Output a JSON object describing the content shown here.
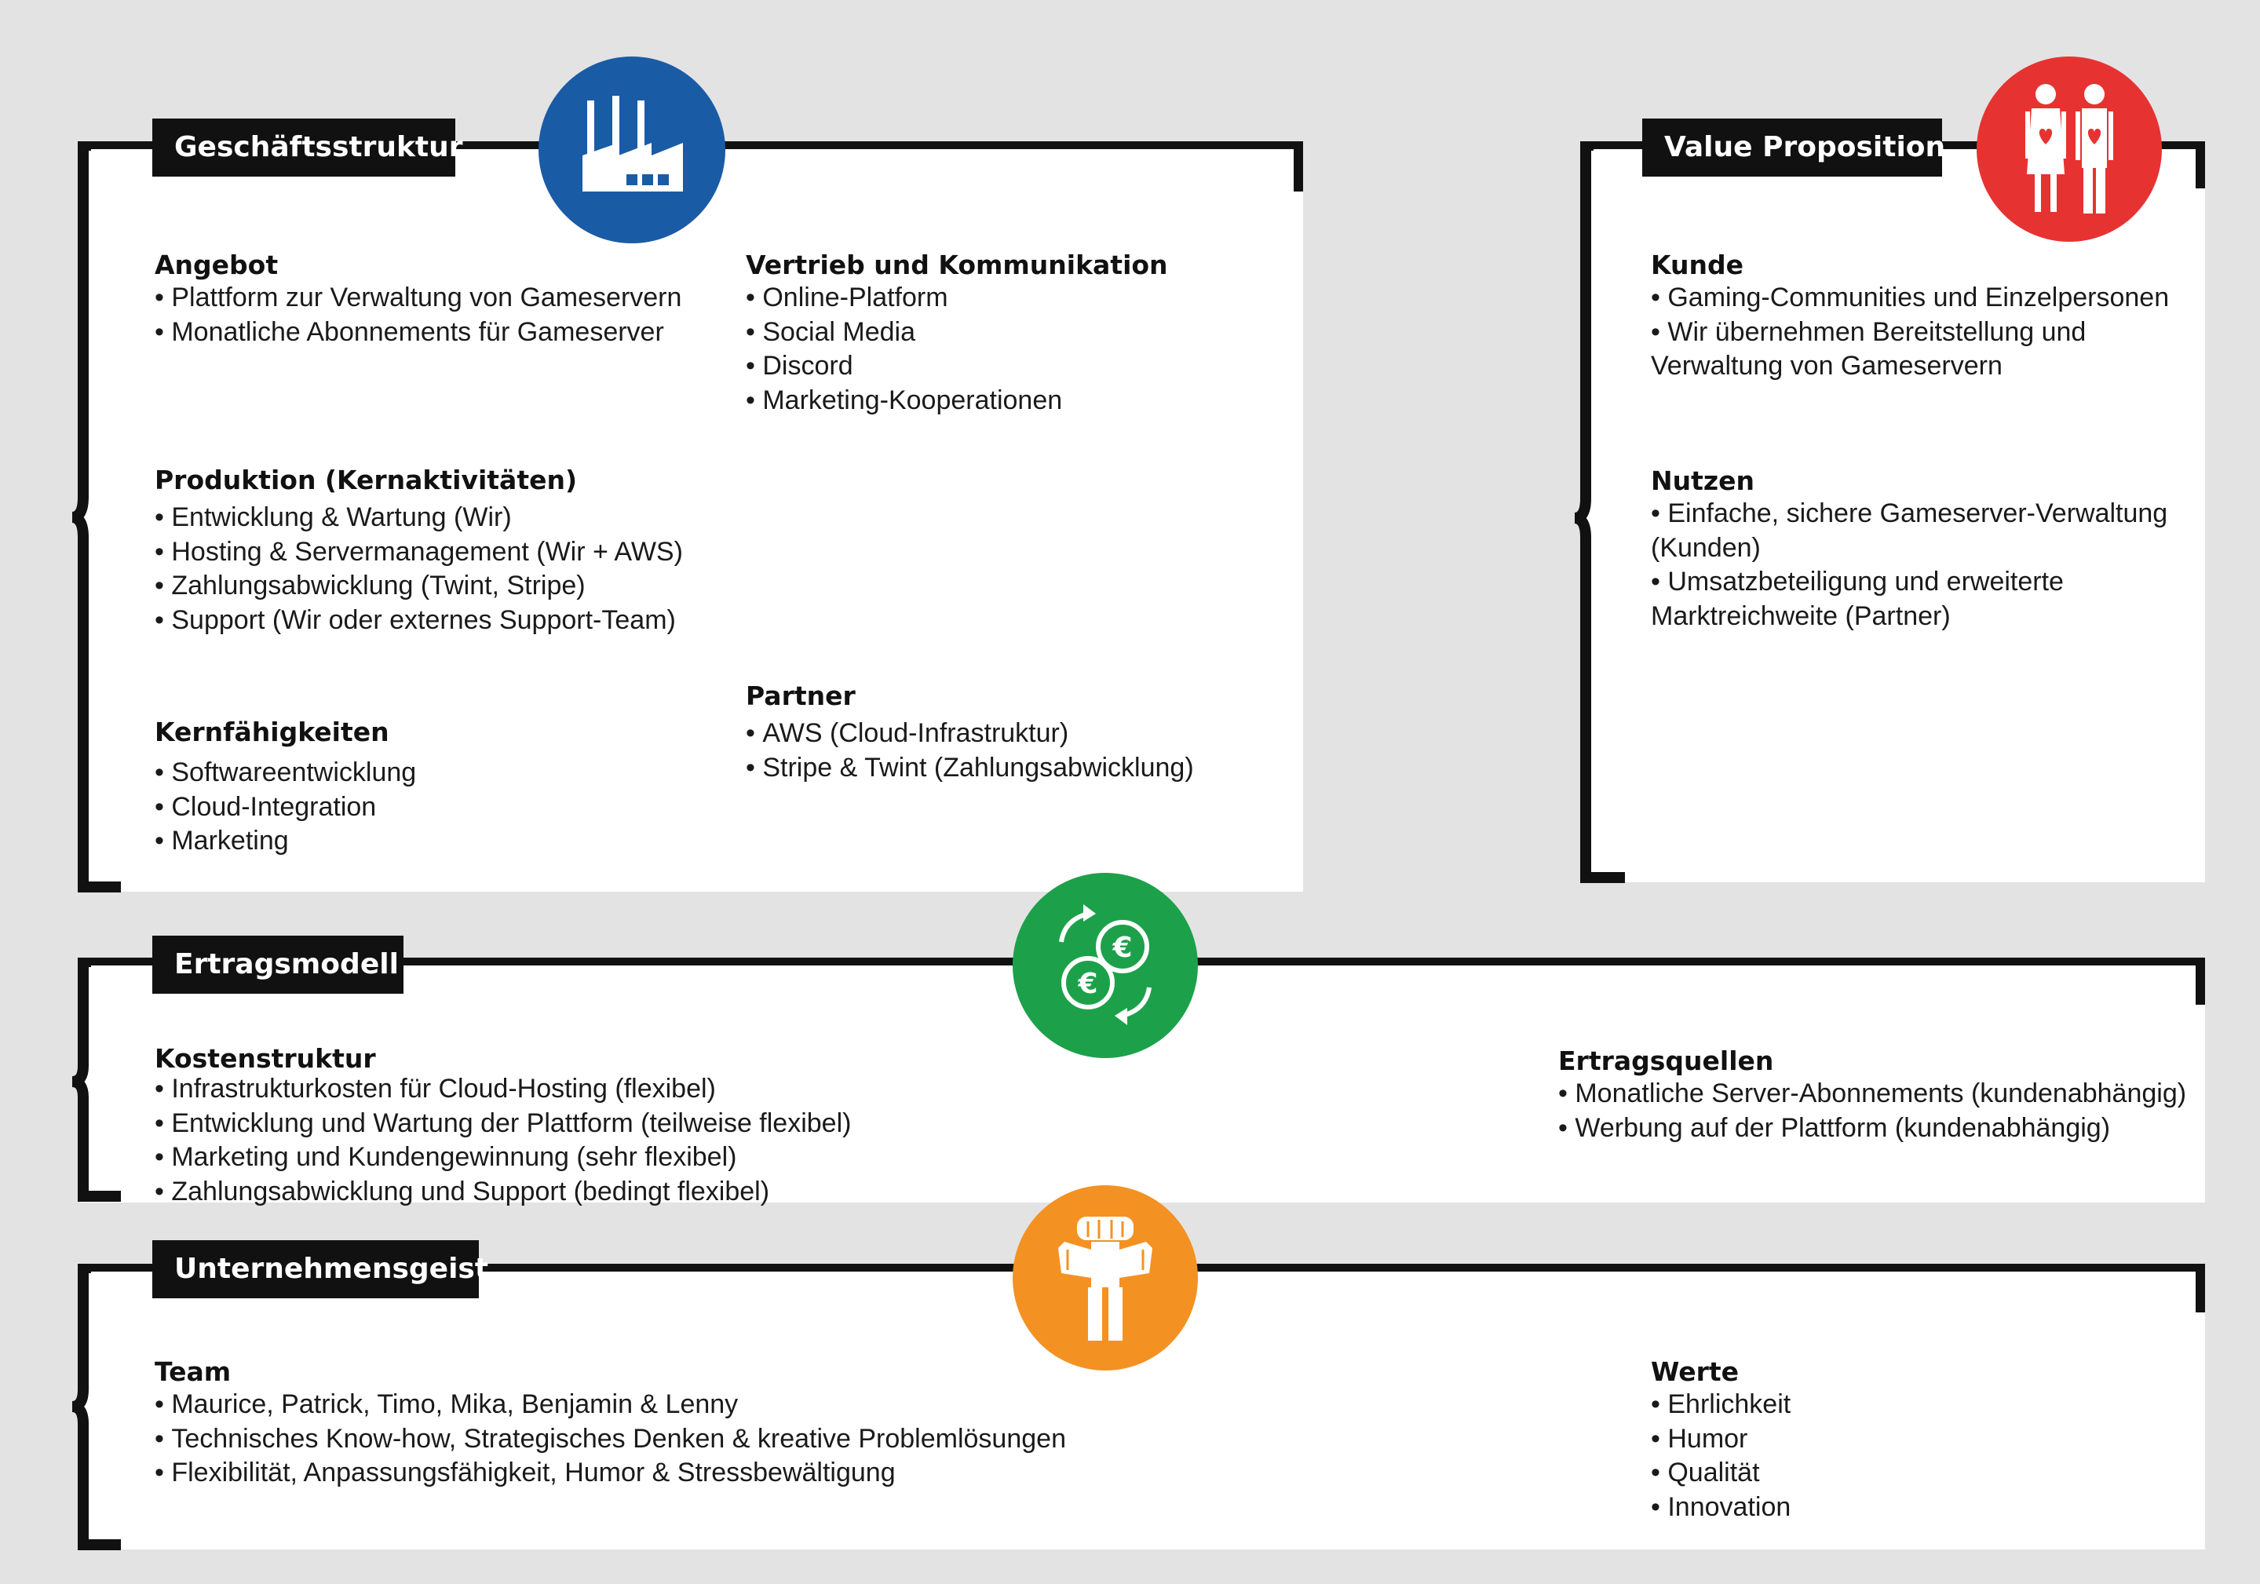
{
  "colors": {
    "background": "#e3e3e4",
    "panel": "#ffffff",
    "frame": "#111111",
    "blue": "#1a5ba6",
    "red": "#e63331",
    "green": "#1ca14a",
    "orange": "#f39223"
  },
  "geschaeftsstruktur": {
    "title": "Geschäftsstruktur",
    "icon": "factory-icon",
    "angebot": {
      "heading": "Angebot",
      "items": [
        "Plattform zur Verwaltung von Gameservern",
        "Monatliche Abonnements für Gameserver"
      ]
    },
    "vertrieb": {
      "heading": "Vertrieb und Kommunikation",
      "items": [
        "Online-Platform",
        "Social Media",
        "Discord",
        "Marketing-Kooperationen"
      ]
    },
    "produktion": {
      "heading": "Produktion (Kernaktivitäten)",
      "items": [
        "Entwicklung & Wartung (Wir)",
        "Hosting & Servermanagement (Wir + AWS)",
        "Zahlungsabwicklung (Twint, Stripe)",
        "Support (Wir oder externes Support-Team)"
      ]
    },
    "partner": {
      "heading": "Partner",
      "items": [
        "AWS (Cloud-Infrastruktur)",
        "Stripe & Twint (Zahlungsabwicklung)"
      ]
    },
    "kernfaehigkeiten": {
      "heading": "Kernfähigkeiten",
      "items": [
        "Softwareentwicklung",
        "Cloud-Integration",
        "Marketing"
      ]
    }
  },
  "value_proposition": {
    "title": "Value Proposition",
    "icon": "couple-hearts-icon",
    "kunde": {
      "heading": "Kunde",
      "items": [
        "Gaming-Communities und Einzelpersonen",
        "Wir übernehmen Bereitstellung und\nVerwaltung von Gameservern"
      ]
    },
    "nutzen": {
      "heading": "Nutzen",
      "items": [
        "Einfache, sichere Gameserver-Verwaltung\n(Kunden)",
        "Umsatzbeteiligung und erweiterte\nMarktreichweite (Partner)"
      ]
    }
  },
  "ertragsmodell": {
    "title": "Ertragsmodell",
    "icon": "euro-coins-exchange-icon",
    "kostenstruktur": {
      "heading": "Kostenstruktur",
      "items": [
        "Infrastrukturkosten für Cloud-Hosting (flexibel)",
        "Entwicklung und Wartung der Plattform (teilweise flexibel)",
        "Marketing und Kundengewinnung (sehr flexibel)",
        "Zahlungsabwicklung und Support (bedingt flexibel)"
      ]
    },
    "ertragsquellen": {
      "heading": "Ertragsquellen",
      "items": [
        "Monatliche Server-Abonnements (kundenabhängig)",
        "Werbung auf der Plattform (kundenabhängig)"
      ]
    }
  },
  "unternehmensgeist": {
    "title": "Unternehmensgeist",
    "icon": "team-people-icon",
    "team": {
      "heading": "Team",
      "items": [
        "Maurice, Patrick, Timo, Mika, Benjamin & Lenny",
        "Technisches Know-how, Strategisches Denken & kreative Problemlösungen",
        "Flexibilität, Anpassungsfähigkeit, Humor & Stressbewältigung"
      ]
    },
    "werte": {
      "heading": "Werte",
      "items": [
        "Ehrlichkeit",
        "Humor",
        "Qualität",
        "Innovation"
      ]
    }
  }
}
